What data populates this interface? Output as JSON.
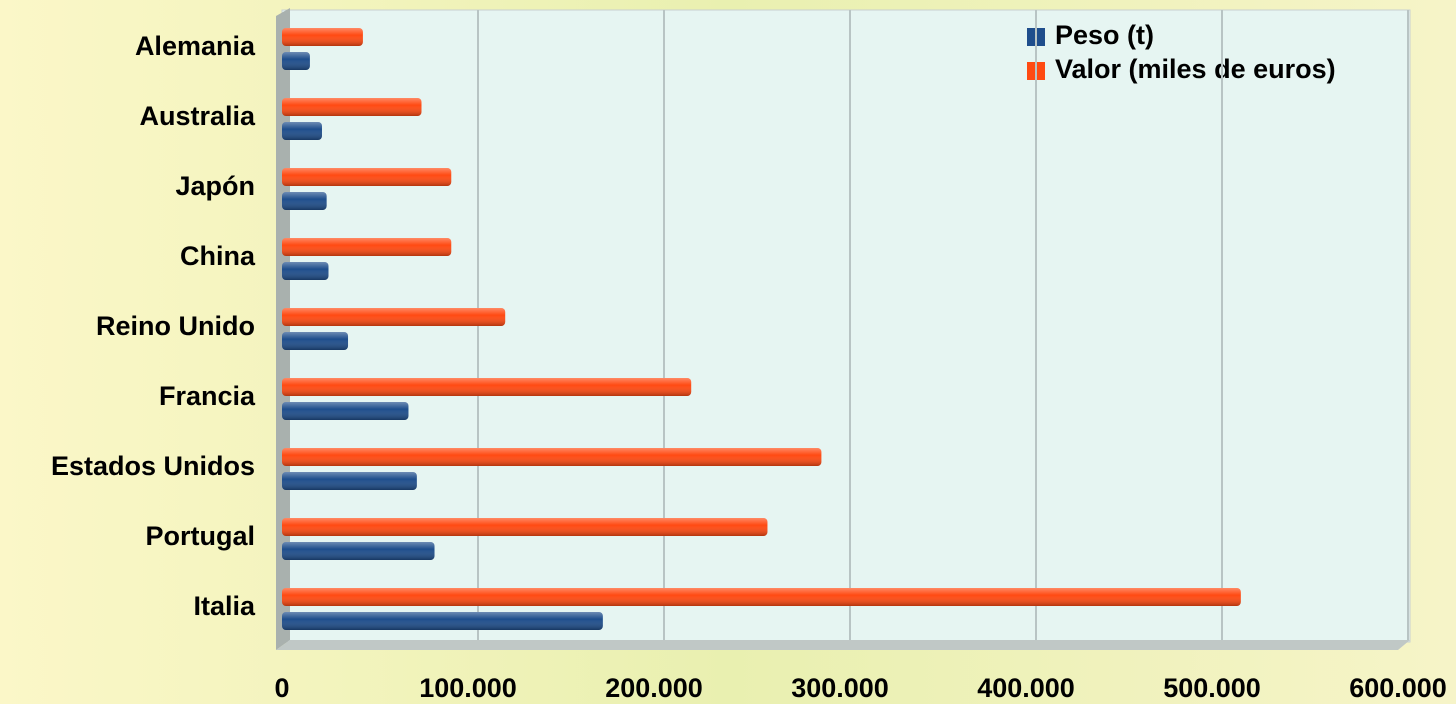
{
  "chart_data": {
    "type": "bar",
    "orientation": "horizontal",
    "categories": [
      "Alemania",
      "Australia",
      "Japón",
      "China",
      "Reino Unido",
      "Francia",
      "Estados Unidos",
      "Portugal",
      "Italia"
    ],
    "series": [
      {
        "name": "Peso (t)",
        "color": "#1f4e8c",
        "values": [
          15000,
          21500,
          24000,
          25000,
          35500,
          68000,
          72500,
          82000,
          172500
        ]
      },
      {
        "name": "Valor (miles de euros)",
        "color": "#ff4a12",
        "values": [
          43500,
          75000,
          91000,
          91000,
          120000,
          220000,
          290000,
          261000,
          515500
        ]
      }
    ],
    "xlim": [
      0,
      600000
    ],
    "xticks": [
      0,
      {
        "value": 100000,
        "label": "100.000"
      },
      {
        "value": 200000,
        "label": "200.000"
      },
      {
        "value": 300000,
        "label": "300.000"
      },
      {
        "value": 400000,
        "label": "400.000"
      },
      {
        "value": 500000,
        "label": "500.000"
      },
      {
        "value": 600000,
        "label": "600.000"
      }
    ],
    "grid": true,
    "legend": "top-right"
  }
}
